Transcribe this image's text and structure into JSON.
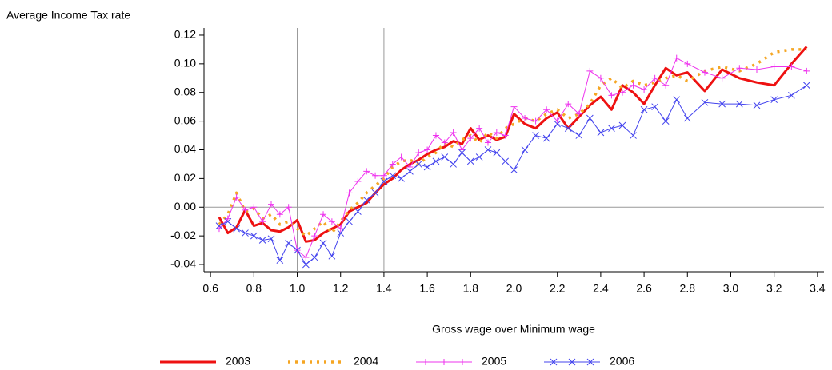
{
  "chart_data": {
    "type": "line",
    "y_label": "Average Income Tax rate",
    "x_label": "Gross wage over Minimum wage",
    "x": [
      0.64,
      0.68,
      0.72,
      0.76,
      0.8,
      0.84,
      0.88,
      0.92,
      0.96,
      1.0,
      1.04,
      1.08,
      1.12,
      1.16,
      1.2,
      1.24,
      1.28,
      1.32,
      1.36,
      1.4,
      1.44,
      1.48,
      1.52,
      1.56,
      1.6,
      1.64,
      1.68,
      1.72,
      1.76,
      1.8,
      1.84,
      1.88,
      1.92,
      1.96,
      2.0,
      2.05,
      2.1,
      2.15,
      2.2,
      2.25,
      2.3,
      2.35,
      2.4,
      2.45,
      2.5,
      2.55,
      2.6,
      2.65,
      2.7,
      2.75,
      2.8,
      2.88,
      2.96,
      3.04,
      3.12,
      3.2,
      3.28,
      3.35
    ],
    "series": [
      {
        "name": "2003",
        "color": "#ee1111",
        "style": "solid",
        "values": [
          -0.007,
          -0.018,
          -0.014,
          -0.002,
          -0.013,
          -0.011,
          -0.016,
          -0.017,
          -0.014,
          -0.009,
          -0.024,
          -0.023,
          -0.018,
          -0.015,
          -0.012,
          -0.003,
          0.0,
          0.003,
          0.01,
          0.016,
          0.02,
          0.026,
          0.03,
          0.033,
          0.037,
          0.04,
          0.042,
          0.046,
          0.044,
          0.055,
          0.047,
          0.05,
          0.047,
          0.049,
          0.065,
          0.058,
          0.055,
          0.062,
          0.066,
          0.055,
          0.063,
          0.071,
          0.077,
          0.068,
          0.085,
          0.08,
          0.072,
          0.085,
          0.097,
          0.092,
          0.094,
          0.081,
          0.096,
          0.09,
          0.087,
          0.085,
          0.1,
          0.112
        ]
      },
      {
        "name": "2004",
        "color": "#f5a623",
        "style": "dotted",
        "values": [
          -0.012,
          -0.005,
          0.01,
          -0.003,
          -0.001,
          -0.008,
          -0.005,
          -0.012,
          -0.01,
          -0.015,
          -0.02,
          -0.015,
          -0.01,
          -0.018,
          -0.01,
          -0.002,
          0.003,
          0.01,
          0.015,
          0.02,
          0.028,
          0.032,
          0.033,
          0.03,
          0.035,
          0.038,
          0.045,
          0.042,
          0.047,
          0.05,
          0.045,
          0.052,
          0.048,
          0.055,
          0.058,
          0.062,
          0.06,
          0.065,
          0.068,
          0.062,
          0.065,
          0.072,
          0.085,
          0.09,
          0.083,
          0.088,
          0.085,
          0.087,
          0.09,
          0.092,
          0.088,
          0.095,
          0.098,
          0.095,
          0.1,
          0.108,
          0.11,
          0.11
        ]
      },
      {
        "name": "2005",
        "color": "#ee33ee",
        "style": "plus",
        "values": [
          -0.015,
          -0.008,
          0.007,
          -0.002,
          0.0,
          -0.01,
          0.002,
          -0.005,
          0.0,
          -0.03,
          -0.035,
          -0.02,
          -0.005,
          -0.01,
          -0.015,
          0.01,
          0.018,
          0.025,
          0.022,
          0.022,
          0.03,
          0.035,
          0.028,
          0.038,
          0.04,
          0.05,
          0.045,
          0.052,
          0.04,
          0.048,
          0.055,
          0.045,
          0.052,
          0.05,
          0.07,
          0.062,
          0.06,
          0.068,
          0.06,
          0.072,
          0.065,
          0.095,
          0.09,
          0.078,
          0.08,
          0.085,
          0.082,
          0.09,
          0.085,
          0.104,
          0.1,
          0.094,
          0.09,
          0.097,
          0.096,
          0.098,
          0.098,
          0.095
        ]
      },
      {
        "name": "2006",
        "color": "#4444ee",
        "style": "cross",
        "values": [
          -0.013,
          -0.01,
          -0.015,
          -0.018,
          -0.02,
          -0.023,
          -0.022,
          -0.037,
          -0.025,
          -0.03,
          -0.04,
          -0.035,
          -0.025,
          -0.034,
          -0.018,
          -0.01,
          -0.003,
          0.005,
          0.01,
          0.018,
          0.022,
          0.02,
          0.025,
          0.03,
          0.028,
          0.032,
          0.035,
          0.03,
          0.038,
          0.032,
          0.035,
          0.04,
          0.038,
          0.032,
          0.026,
          0.04,
          0.05,
          0.048,
          0.058,
          0.055,
          0.05,
          0.062,
          0.052,
          0.055,
          0.057,
          0.05,
          0.068,
          0.07,
          0.06,
          0.075,
          0.062,
          0.073,
          0.072,
          0.072,
          0.071,
          0.075,
          0.078,
          0.085
        ]
      }
    ],
    "xlim": [
      0.57,
      3.43
    ],
    "xticks": [
      0.6,
      0.8,
      {
        "value": 1.0,
        "label": "1.0"
      },
      1.2,
      1.4,
      1.6,
      1.8,
      {
        "value": 2.0,
        "label": "2.0"
      },
      2.2,
      2.4,
      2.6,
      2.8,
      {
        "value": 3.0,
        "label": "3.0"
      },
      3.2,
      3.4
    ],
    "ylim": [
      -0.045,
      0.125
    ],
    "yticks": [
      -0.04,
      -0.02,
      {
        "value": 0,
        "label": "0.00"
      },
      0.02,
      0.04,
      0.06,
      0.08,
      {
        "value": 0.1,
        "label": "0.10"
      },
      0.12
    ],
    "vlines": [
      1.0,
      1.4
    ],
    "hline": 0,
    "legend": "bottom"
  }
}
